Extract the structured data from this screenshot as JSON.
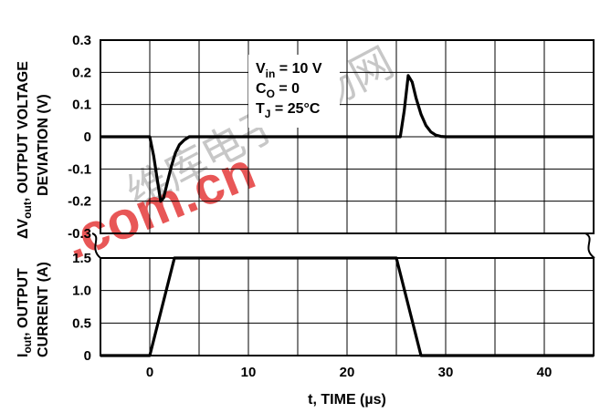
{
  "chart_data": {
    "type": "line",
    "x_label": "t, TIME (µs)",
    "x_ticks": [
      "0",
      "10",
      "20",
      "30",
      "40"
    ],
    "xlim": [
      -5,
      45
    ],
    "top_panel": {
      "ylabel_lines": [
        "ΔV",
        "out",
        ", OUTPUT VOLTAGE",
        "DEVIATION (V)"
      ],
      "ylim": [
        -0.3,
        0.3
      ],
      "y_ticks": [
        "0.3",
        "0.2",
        "0.1",
        "0",
        "-0.1",
        "-0.2",
        "-0.3"
      ],
      "series": [
        {
          "x": [
            -5,
            0,
            0.4,
            0.8,
            1.1,
            1.4,
            1.8,
            2.2,
            2.6,
            3.0,
            3.5,
            4.0,
            25.4,
            25.8,
            26.2,
            26.6,
            27.0,
            27.5,
            28.0,
            28.5,
            29.0,
            29.5,
            30.0,
            45
          ],
          "y": [
            0,
            0,
            -0.06,
            -0.14,
            -0.2,
            -0.19,
            -0.14,
            -0.09,
            -0.05,
            -0.025,
            -0.01,
            0,
            0,
            0.08,
            0.19,
            0.17,
            0.12,
            0.07,
            0.035,
            0.015,
            0.005,
            0.001,
            0,
            0
          ]
        }
      ],
      "annotations": {
        "vin_main": "V",
        "vin_sub": "in",
        "vin_rest": " = 10 V",
        "co_main": "C",
        "co_sub": "O",
        "co_rest": " = 0",
        "tj_main": "T",
        "tj_sub": "J",
        "tj_rest": " = 25°C"
      }
    },
    "bottom_panel": {
      "ylabel_lines": [
        "I",
        "out",
        ", OUTPUT",
        "CURRENT (A)"
      ],
      "ylim": [
        0,
        1.5
      ],
      "y_ticks": [
        "1.5",
        "1.0",
        "0.5",
        "0"
      ],
      "series": [
        {
          "x": [
            -5,
            0,
            2.5,
            25,
            27.5,
            45
          ],
          "y": [
            0,
            0,
            1.5,
            1.5,
            0,
            0
          ]
        }
      ]
    }
  },
  "watermark": {
    "text_cn": "维库电子市场网",
    "text_url": ".com.cn",
    "color": "#e53a3a"
  }
}
